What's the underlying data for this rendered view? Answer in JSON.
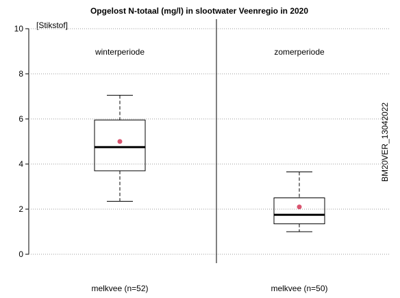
{
  "chart_data": {
    "type": "box",
    "title": "Opgelost N-totaal (mg/l) in slootwater Veenregio in 2020",
    "ylabel": "[Stikstof]",
    "ylim": [
      0,
      10
    ],
    "yticks": [
      0,
      2,
      4,
      6,
      8,
      10
    ],
    "grid": "horizontal-dotted",
    "side_label": "BM20VER_13042022",
    "panels": [
      {
        "name": "winterperiode",
        "category": "melkvee (n=52)",
        "whisker_low": 2.35,
        "q1": 3.7,
        "median": 4.75,
        "q3": 5.95,
        "whisker_high": 7.05,
        "mean": 5.0
      },
      {
        "name": "zomerperiode",
        "category": "melkvee (n=50)",
        "whisker_low": 1.0,
        "q1": 1.35,
        "median": 1.75,
        "q3": 2.5,
        "whisker_high": 3.65,
        "mean": 2.1
      }
    ],
    "colors": {
      "mean": "#d9546f",
      "box": "#000000",
      "grid": "#999999"
    }
  }
}
